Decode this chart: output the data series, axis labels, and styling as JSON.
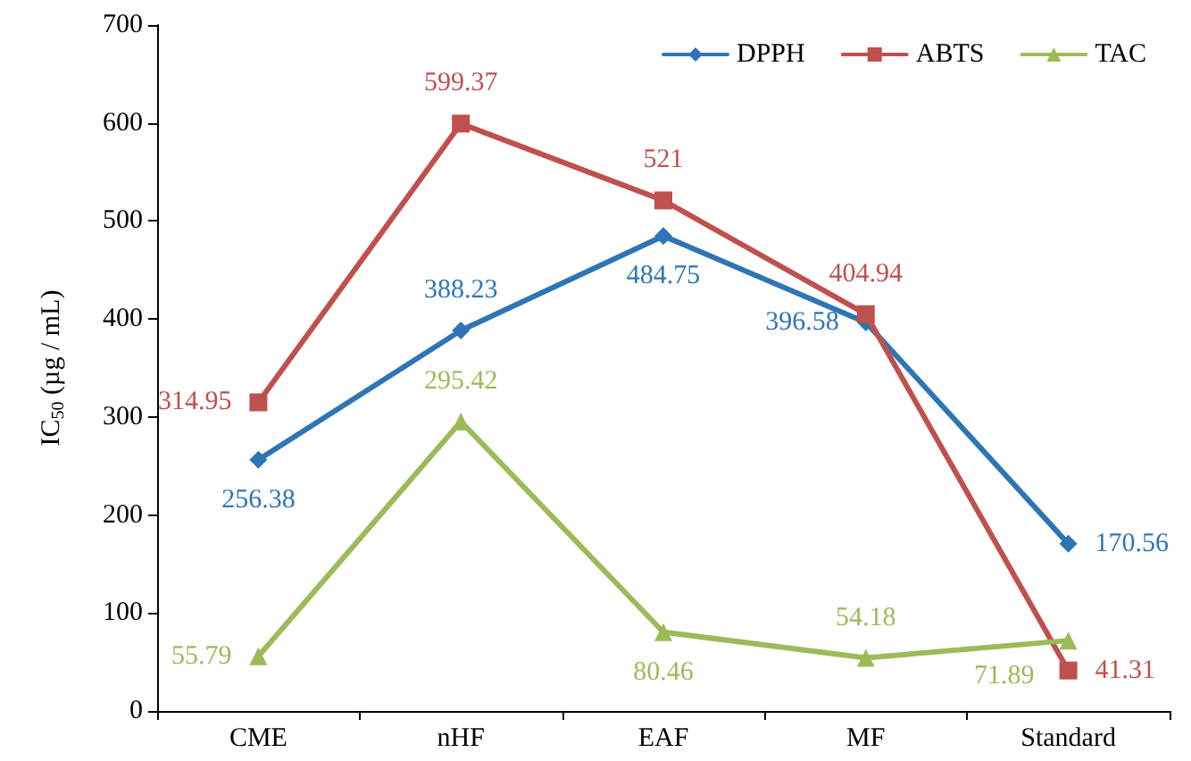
{
  "chart_data": {
    "type": "line",
    "ylabel": "IC$_{50}$ (µg / mL)",
    "categories": [
      "CME",
      "nHF",
      "EAF",
      "MF",
      "Standard"
    ],
    "series": [
      {
        "name": "DPPH",
        "color": "#2e75b6",
        "marker": "diamond",
        "values": [
          256.38,
          388.23,
          484.75,
          396.58,
          170.56
        ]
      },
      {
        "name": "ABTS",
        "color": "#c0504d",
        "marker": "square",
        "values": [
          314.95,
          599.37,
          521,
          404.94,
          41.31
        ]
      },
      {
        "name": "TAC",
        "color": "#9bbb59",
        "marker": "triangle",
        "values": [
          55.79,
          295.42,
          80.46,
          54.18,
          71.89
        ]
      }
    ],
    "ylim": [
      0,
      700
    ],
    "yticks": [
      0,
      100,
      200,
      300,
      400,
      500,
      600,
      700
    ],
    "data_labels": true,
    "legend": "top right",
    "grid": false
  }
}
